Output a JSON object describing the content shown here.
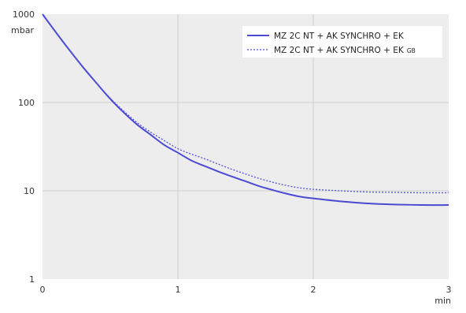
{
  "chart_data": {
    "type": "line",
    "xlabel": "min",
    "ylabel": "mbar",
    "x_ticks": [
      "0",
      "1",
      "2",
      "3"
    ],
    "y_ticks": [
      "1",
      "10",
      "100",
      "1000"
    ],
    "xlim": [
      0,
      3
    ],
    "ylim": [
      1,
      1000
    ],
    "y_scale": "log",
    "grid": true,
    "legend_position": "top-right",
    "series": [
      {
        "name": "MZ 2C NT + AK SYNCHRO + EK",
        "style": "solid",
        "color": "#4a4ad2",
        "x": [
          0,
          0.1,
          0.2,
          0.3,
          0.4,
          0.5,
          0.6,
          0.7,
          0.8,
          0.9,
          1.0,
          1.1,
          1.2,
          1.3,
          1.4,
          1.5,
          1.6,
          1.7,
          1.8,
          1.9,
          2.0,
          2.2,
          2.4,
          2.6,
          2.8,
          3.0
        ],
        "y": [
          1000,
          620,
          390,
          250,
          165,
          110,
          77,
          56,
          43,
          33,
          27,
          22,
          19,
          16.5,
          14.5,
          12.8,
          11.3,
          10.2,
          9.3,
          8.6,
          8.2,
          7.6,
          7.2,
          7.0,
          6.9,
          6.9
        ]
      },
      {
        "name": "MZ 2C NT + AK SYNCHRO + EK",
        "name_sub": "GB",
        "style": "dashed",
        "color": "#5252d8",
        "x": [
          0,
          0.1,
          0.2,
          0.3,
          0.4,
          0.5,
          0.6,
          0.7,
          0.8,
          0.9,
          1.0,
          1.1,
          1.2,
          1.3,
          1.4,
          1.5,
          1.6,
          1.7,
          1.8,
          1.9,
          2.0,
          2.2,
          2.4,
          2.6,
          2.8,
          3.0
        ],
        "y": [
          1000,
          620,
          390,
          250,
          165,
          112,
          80,
          59,
          46,
          37,
          30,
          26,
          23,
          20,
          17.5,
          15.5,
          13.8,
          12.5,
          11.5,
          10.8,
          10.4,
          10.0,
          9.7,
          9.6,
          9.5,
          9.5
        ]
      }
    ]
  }
}
